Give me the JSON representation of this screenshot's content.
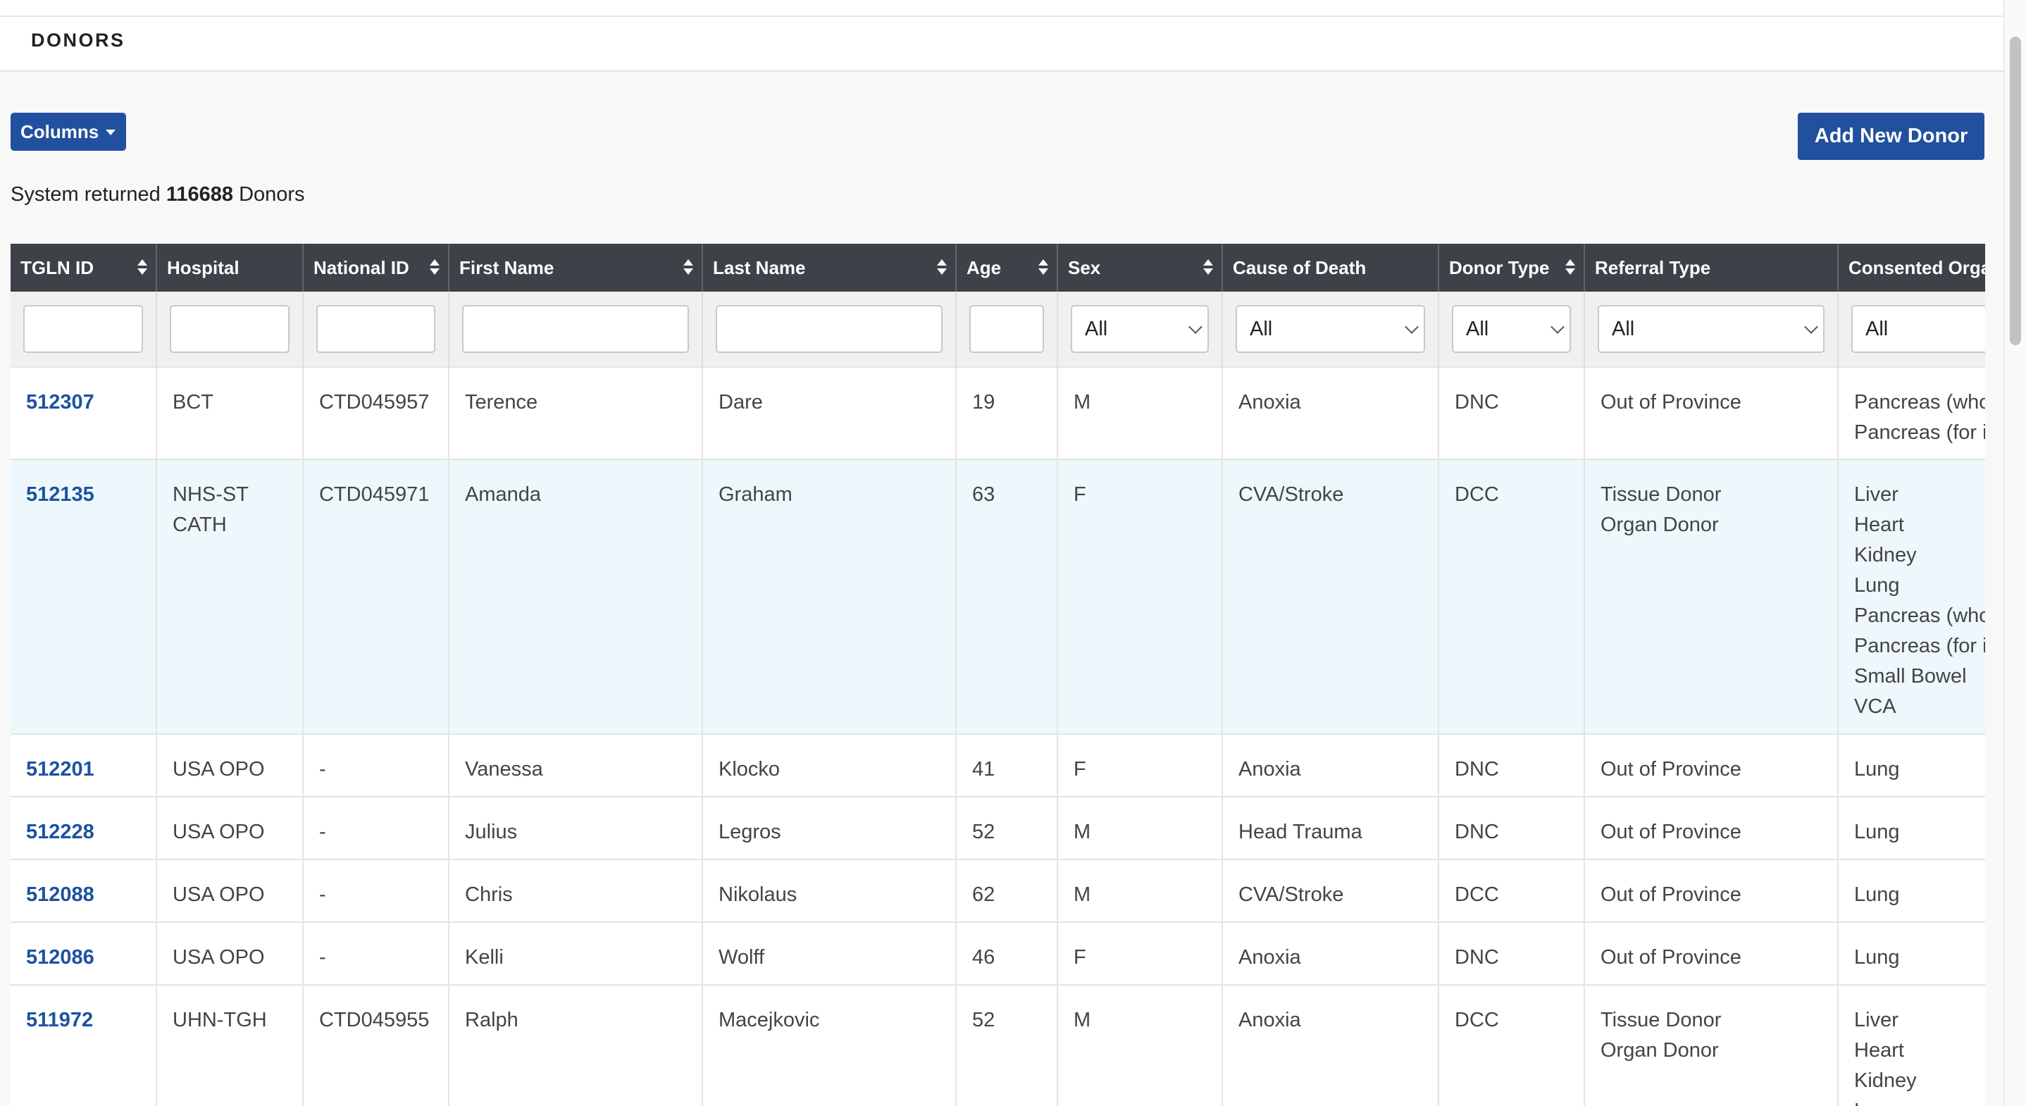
{
  "page": {
    "section_title": "DONORS"
  },
  "toolbar": {
    "columns_label": "Columns",
    "add_label": "Add New Donor"
  },
  "summary": {
    "prefix": "System returned",
    "count": "116688",
    "suffix": "Donors"
  },
  "table": {
    "headers": [
      "TGLN ID",
      "Hospital",
      "National ID",
      "First Name",
      "Last Name",
      "Age",
      "Sex",
      "Cause of Death",
      "Donor Type",
      "Referral Type",
      "Consented Orga"
    ],
    "filter_all": "All",
    "rows": [
      {
        "id": "512307",
        "hospital": "BCT",
        "national_id": "CTD045957",
        "first": "Terence",
        "last": "Dare",
        "age": "19",
        "sex": "M",
        "cause": "Anoxia",
        "donor_type": "DNC",
        "referral": "Out of Province",
        "organs": "Pancreas (who\nPancreas (for i"
      },
      {
        "id": "512135",
        "hospital": "NHS-ST\nCATH",
        "national_id": "CTD045971",
        "first": "Amanda",
        "last": "Graham",
        "age": "63",
        "sex": "F",
        "cause": "CVA/Stroke",
        "donor_type": "DCC",
        "referral": "Tissue Donor\nOrgan Donor",
        "organs": "Liver\nHeart\nKidney\nLung\nPancreas (who\nPancreas (for i\nSmall Bowel\nVCA"
      },
      {
        "id": "512201",
        "hospital": "USA OPO",
        "national_id": "-",
        "first": "Vanessa",
        "last": "Klocko",
        "age": "41",
        "sex": "F",
        "cause": "Anoxia",
        "donor_type": "DNC",
        "referral": "Out of Province",
        "organs": "Lung"
      },
      {
        "id": "512228",
        "hospital": "USA OPO",
        "national_id": "-",
        "first": "Julius",
        "last": "Legros",
        "age": "52",
        "sex": "M",
        "cause": "Head Trauma",
        "donor_type": "DNC",
        "referral": "Out of Province",
        "organs": "Lung"
      },
      {
        "id": "512088",
        "hospital": "USA OPO",
        "national_id": "-",
        "first": "Chris",
        "last": "Nikolaus",
        "age": "62",
        "sex": "M",
        "cause": "CVA/Stroke",
        "donor_type": "DCC",
        "referral": "Out of Province",
        "organs": "Lung"
      },
      {
        "id": "512086",
        "hospital": "USA OPO",
        "national_id": "-",
        "first": "Kelli",
        "last": "Wolff",
        "age": "46",
        "sex": "F",
        "cause": "Anoxia",
        "donor_type": "DNC",
        "referral": "Out of Province",
        "organs": "Lung"
      },
      {
        "id": "511972",
        "hospital": "UHN-TGH",
        "national_id": "CTD045955",
        "first": "Ralph",
        "last": "Macejkovic",
        "age": "52",
        "sex": "M",
        "cause": "Anoxia",
        "donor_type": "DCC",
        "referral": "Tissue Donor\nOrgan Donor",
        "organs": "Liver\nHeart\nKidney\nLung"
      }
    ]
  }
}
